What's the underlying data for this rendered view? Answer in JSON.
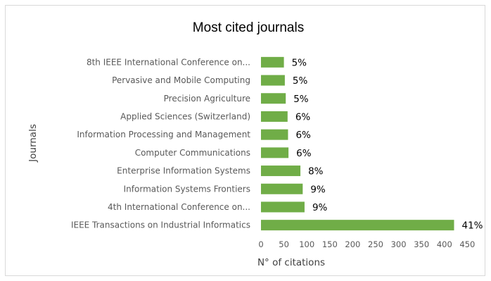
{
  "chart_data": {
    "type": "bar",
    "orientation": "horizontal",
    "title": "Most cited journals",
    "xlabel": "N° of citations",
    "ylabel": "Journals",
    "xlim": [
      0,
      450
    ],
    "xticks": [
      0,
      50,
      100,
      150,
      200,
      250,
      300,
      350,
      400,
      450
    ],
    "grid": false,
    "legend": "none",
    "bar_color": "#70ad47",
    "categories": [
      "8th IEEE International Conference on...",
      "Pervasive and Mobile Computing",
      "Precision Agriculture",
      "Applied Sciences (Switzerland)",
      "Information Processing and Management",
      "Computer Communications",
      "Enterprise Information Systems",
      "Information Systems Frontiers",
      "4th International Conference on...",
      "IEEE Transactions on Industrial Informatics"
    ],
    "values": [
      50,
      52,
      54,
      58,
      59,
      60,
      86,
      91,
      95,
      421
    ],
    "data_labels": [
      "5%",
      "5%",
      "5%",
      "6%",
      "6%",
      "6%",
      "8%",
      "9%",
      "9%",
      "41%"
    ]
  }
}
